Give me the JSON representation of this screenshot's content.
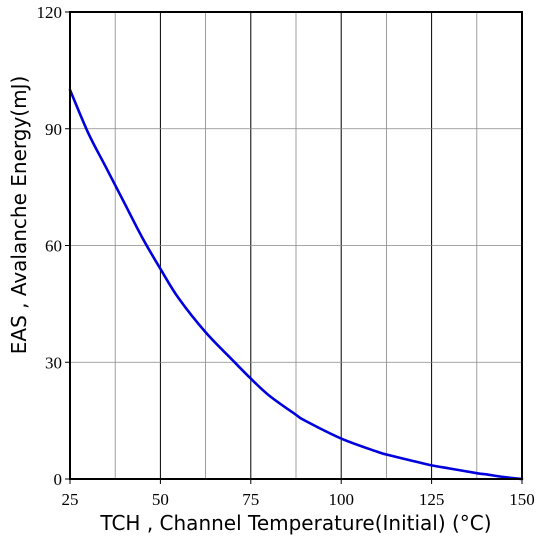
{
  "chart_data": {
    "type": "line",
    "title": "",
    "xlabel": "TCH , Channel Temperature(Initial) (°C)",
    "ylabel": "EAS , Avalanche Energy(mJ)",
    "xlim": [
      25,
      150
    ],
    "ylim": [
      0,
      120
    ],
    "x_ticks": [
      25,
      50,
      75,
      100,
      125,
      150
    ],
    "y_ticks": [
      0,
      30,
      60,
      90,
      120
    ],
    "x_tick_labels": [
      "25",
      "50",
      "75",
      "100",
      "125",
      "150"
    ],
    "y_tick_labels": [
      "0",
      "30",
      "60",
      "90",
      "120"
    ],
    "x_gridlines": [
      37.5,
      50,
      62.5,
      75,
      87.5,
      100,
      112.5,
      125,
      137.5
    ],
    "y_gridlines": [
      30,
      60,
      90
    ],
    "grid": true,
    "legend": "none",
    "colors": {
      "line": "#0000dd",
      "grid_major": "#000000",
      "grid_minor": "#888888",
      "axes": "#000000"
    },
    "series": [
      {
        "x": [
          25,
          30,
          35,
          40,
          45,
          50,
          55,
          62.5,
          70,
          75,
          80,
          87.5,
          90,
          100,
          110,
          112.5,
          120,
          125,
          130,
          137.5,
          140,
          145,
          150
        ],
        "y": [
          100,
          89,
          80,
          71,
          62,
          54,
          46.5,
          37.7,
          30.5,
          25.8,
          21.5,
          16.5,
          15,
          10.4,
          7,
          6.3,
          4.6,
          3.5,
          2.7,
          1.5,
          1.2,
          0.5,
          0
        ]
      }
    ]
  }
}
